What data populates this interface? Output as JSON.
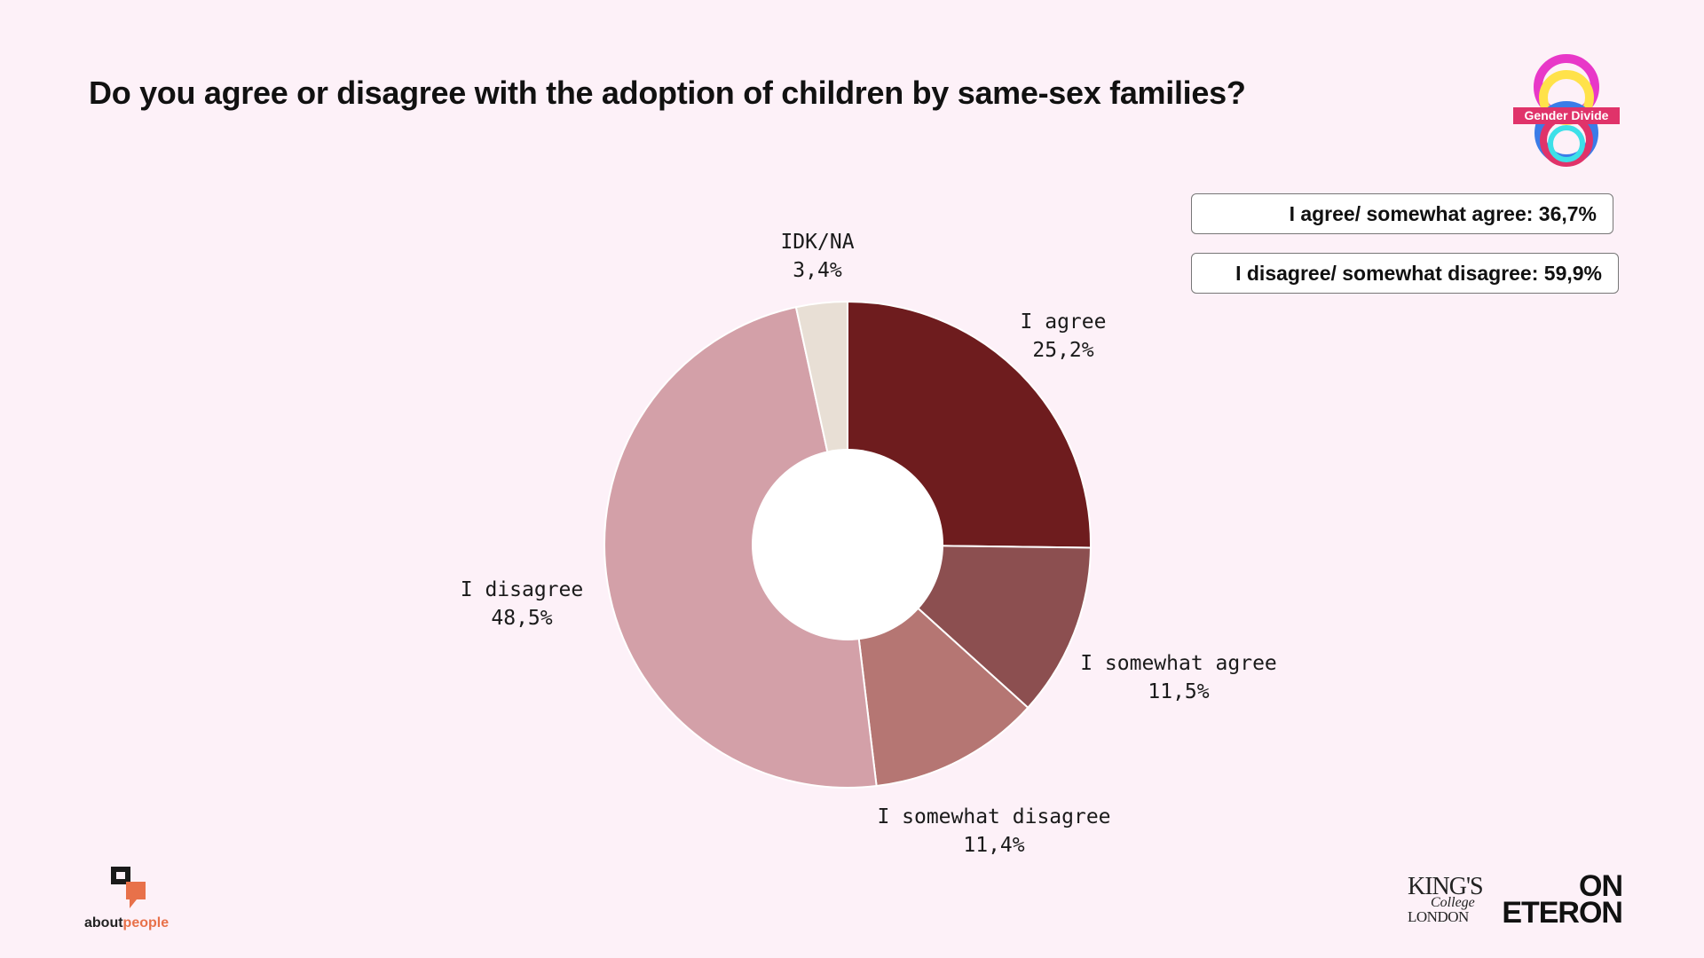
{
  "title": "Do you agree or disagree with the adoption of children by same-sex families?",
  "chart_data": {
    "type": "pie",
    "subtype": "donut",
    "slices": [
      {
        "label": "I agree",
        "value": 25.2,
        "display": "25,2%",
        "color": "#6e1c1e"
      },
      {
        "label": "I somewhat agree",
        "value": 11.5,
        "display": "11,5%",
        "color": "#8c4f50"
      },
      {
        "label": "I somewhat disagree",
        "value": 11.4,
        "display": "11,4%",
        "color": "#b57673"
      },
      {
        "label": "I disagree",
        "value": 48.5,
        "display": "48,5%",
        "color": "#d3a0a8"
      },
      {
        "label": "IDK/NA",
        "value": 3.4,
        "display": "3,4%",
        "color": "#e8dfd5"
      }
    ]
  },
  "summary": {
    "agree": "I agree/ somewhat agree: 36,7%",
    "disagree": "I disagree/ somewhat disagree: 59,9%"
  },
  "logos": {
    "gender_divide": "Gender Divide",
    "aboutpeople_a": "about",
    "aboutpeople_b": "people",
    "kcl_1": "KING'S",
    "kcl_2": "College",
    "kcl_3": "LONDON",
    "eteron_1": "ON",
    "eteron_2": "ETERON"
  },
  "colors": {
    "background": "#fdf1f8",
    "gender_divide_accent": "#e0336a",
    "aboutpeople_accent": "#e8714a"
  }
}
